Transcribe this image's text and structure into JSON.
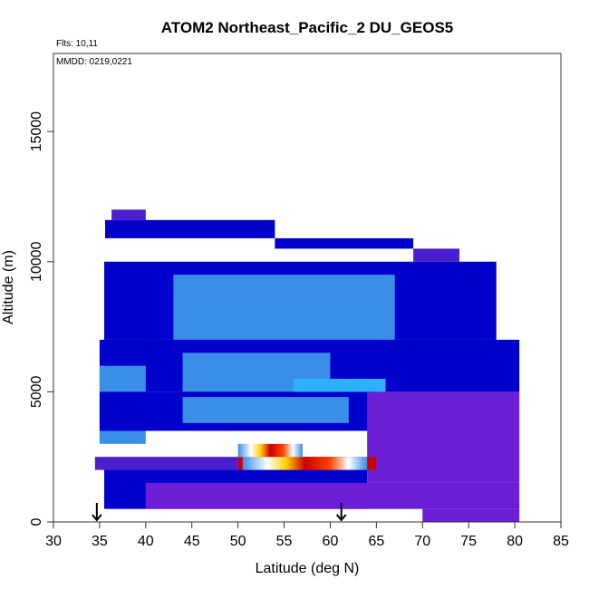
{
  "chart_data": {
    "type": "heatmap",
    "title": "ATOM2 Northeast_Pacific_2 DU_GEOS5",
    "flights_label": "Flts: 10,11",
    "mmdd_label": "MMDD: 0219,0221",
    "xlabel": "Latitude (deg N)",
    "ylabel": "Altitude (m)",
    "xlim": [
      30,
      85
    ],
    "ylim": [
      0,
      18000
    ],
    "xticks": [
      30,
      35,
      40,
      45,
      50,
      55,
      60,
      65,
      70,
      75,
      80,
      85
    ],
    "yticks": [
      0,
      5000,
      10000,
      15000
    ],
    "colors": {
      "low": "#0000cc",
      "mid": "#3a8ee8",
      "high_peak": "#cc0000",
      "purple_zone": "#6a1fd6",
      "background": "#ffffff"
    },
    "arrows_at_latitude": [
      34.7,
      61.2
    ],
    "cells": [
      {
        "lat": [
          36.3,
          40.0
        ],
        "alt": [
          11600,
          12000
        ],
        "level": "purple_blue"
      },
      {
        "lat": [
          35.6,
          54.0
        ],
        "alt": [
          10900,
          11600
        ],
        "level": "low"
      },
      {
        "lat": [
          54.0,
          69.0
        ],
        "alt": [
          10500,
          10900
        ],
        "level": "low"
      },
      {
        "lat": [
          69.0,
          74.0
        ],
        "alt": [
          10000,
          10500
        ],
        "level": "purple_blue"
      },
      {
        "lat": [
          35.5,
          78.0
        ],
        "alt": [
          7000,
          10000
        ],
        "level": "low"
      },
      {
        "lat": [
          43.0,
          67.0
        ],
        "alt": [
          7000,
          9500
        ],
        "level": "medium"
      },
      {
        "lat": [
          35.0,
          80.5
        ],
        "alt": [
          5000,
          7000
        ],
        "level": "low"
      },
      {
        "lat": [
          35.0,
          40.0
        ],
        "alt": [
          3000,
          6000
        ],
        "level": "medium"
      },
      {
        "lat": [
          44.0,
          60.0
        ],
        "alt": [
          5000,
          6500
        ],
        "level": "medium"
      },
      {
        "lat": [
          56.0,
          66.0
        ],
        "alt": [
          4800,
          5500
        ],
        "level": "medium_high"
      },
      {
        "lat": [
          35.0,
          65.0
        ],
        "alt": [
          3500,
          5000
        ],
        "level": "low"
      },
      {
        "lat": [
          44.0,
          62.0
        ],
        "alt": [
          3800,
          4800
        ],
        "level": "medium"
      },
      {
        "lat": [
          64.0,
          80.5
        ],
        "alt": [
          1500,
          5000
        ],
        "level": "purple"
      },
      {
        "lat": [
          50.0,
          56.5
        ],
        "alt": [
          2500,
          3500
        ],
        "level": "high"
      },
      {
        "lat": [
          50.0,
          65.0
        ],
        "alt": [
          2000,
          2500
        ],
        "level": "peak"
      },
      {
        "lat": [
          34.5,
          50.0
        ],
        "alt": [
          2000,
          2500
        ],
        "level": "purple_blue"
      },
      {
        "lat": [
          35.5,
          64.0
        ],
        "alt": [
          500,
          2000
        ],
        "level": "low"
      },
      {
        "lat": [
          40.0,
          80.5
        ],
        "alt": [
          500,
          1500
        ],
        "level": "purple"
      },
      {
        "lat": [
          70.0,
          80.5
        ],
        "alt": [
          0,
          500
        ],
        "level": "purple"
      }
    ],
    "grid": false,
    "legend": "none"
  }
}
